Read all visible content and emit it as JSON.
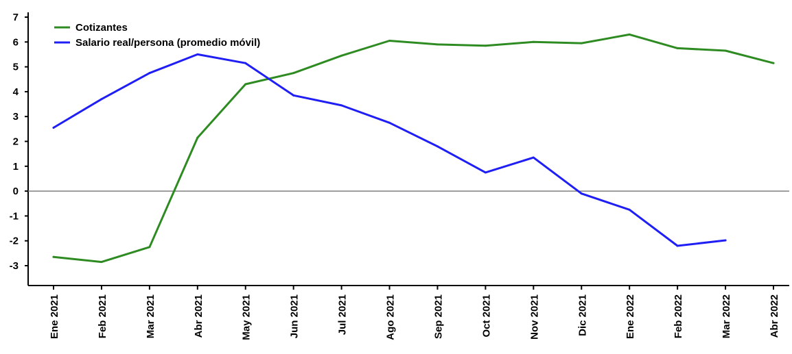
{
  "chart_data": {
    "type": "line",
    "categories": [
      "Ene 2021",
      "Feb 2021",
      "Mar 2021",
      "Abr 2021",
      "May 2021",
      "Jun 2021",
      "Jul 2021",
      "Ago 2021",
      "Sep 2021",
      "Oct 2021",
      "Nov 2021",
      "Dic 2021",
      "Ene 2022",
      "Feb 2022",
      "Mar 2022",
      "Abr 2022"
    ],
    "ylim": [
      -3.5,
      7
    ],
    "yticks": [
      -3,
      -2,
      -1,
      0,
      1,
      2,
      3,
      4,
      5,
      6,
      7
    ],
    "grid": false,
    "legend_position": "top-left",
    "series": [
      {
        "name": "Cotizantes",
        "color": "#2e8b22",
        "values": [
          -2.65,
          -2.85,
          -2.25,
          2.15,
          4.3,
          4.75,
          5.45,
          6.05,
          5.9,
          5.85,
          6.0,
          5.95,
          6.3,
          5.75,
          5.65,
          5.15
        ]
      },
      {
        "name": "Salario real/persona (promedio móvil)",
        "color": "#1f1ff5",
        "values": [
          2.55,
          3.7,
          4.75,
          5.5,
          5.15,
          3.85,
          3.45,
          2.75,
          1.8,
          0.75,
          1.35,
          -0.1,
          -0.75,
          -2.2,
          -1.98,
          null
        ]
      }
    ]
  }
}
